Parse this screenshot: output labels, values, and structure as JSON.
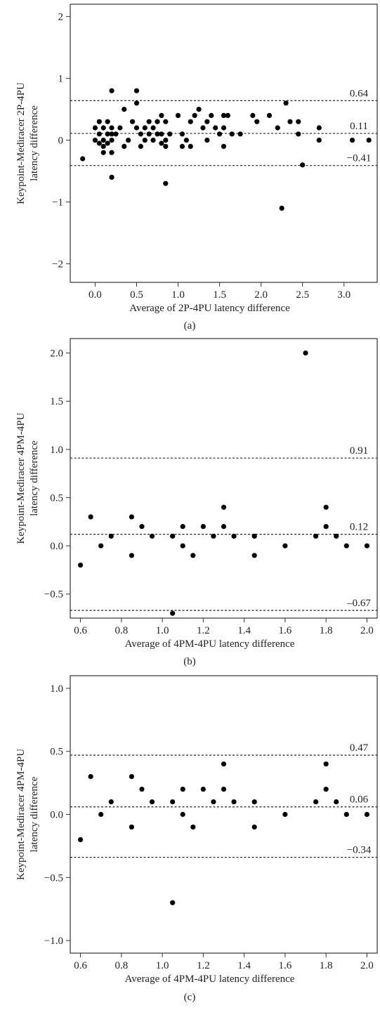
{
  "chart_data": [
    {
      "type": "scatter",
      "panel_label": "(a)",
      "xlabel": "Average of 2P-4PU latency difference",
      "ylabel_lines": [
        "Keypoint-Mediracer 2P-4PU",
        "latency difference"
      ],
      "xlim": [
        -0.3,
        3.4
      ],
      "ylim": [
        -2.3,
        2.2
      ],
      "xticks": [
        0.0,
        0.5,
        1.0,
        1.5,
        2.0,
        2.5,
        3.0
      ],
      "xtick_labels": [
        "0.0",
        "0.5",
        "1.0",
        "1.5",
        "2.0",
        "2.5",
        "3.0"
      ],
      "yticks": [
        -2,
        -1,
        0,
        1,
        2
      ],
      "ytick_labels": [
        "−2",
        "−1",
        "0",
        "1",
        "2"
      ],
      "reference_lines": [
        {
          "value": 0.64,
          "label": "0.64"
        },
        {
          "value": 0.11,
          "label": "0.11"
        },
        {
          "value": -0.41,
          "label": "−0.41"
        }
      ],
      "points": [
        [
          -0.15,
          -0.3
        ],
        [
          0.0,
          0.2
        ],
        [
          0.0,
          0.0
        ],
        [
          0.05,
          0.3
        ],
        [
          0.05,
          0.1
        ],
        [
          0.05,
          -0.05
        ],
        [
          0.1,
          0.2
        ],
        [
          0.1,
          0.0
        ],
        [
          0.1,
          -0.1
        ],
        [
          0.1,
          -0.2
        ],
        [
          0.15,
          0.3
        ],
        [
          0.15,
          0.1
        ],
        [
          0.15,
          -0.05
        ],
        [
          0.2,
          0.8
        ],
        [
          0.2,
          0.2
        ],
        [
          0.2,
          0.1
        ],
        [
          0.2,
          0.0
        ],
        [
          0.2,
          -0.2
        ],
        [
          0.2,
          -0.6
        ],
        [
          0.25,
          0.1
        ],
        [
          0.3,
          0.2
        ],
        [
          0.35,
          0.5
        ],
        [
          0.35,
          -0.1
        ],
        [
          0.4,
          0.0
        ],
        [
          0.45,
          0.3
        ],
        [
          0.5,
          0.8
        ],
        [
          0.5,
          0.6
        ],
        [
          0.5,
          0.2
        ],
        [
          0.55,
          0.1
        ],
        [
          0.55,
          -0.1
        ],
        [
          0.6,
          0.2
        ],
        [
          0.6,
          0.0
        ],
        [
          0.65,
          0.3
        ],
        [
          0.65,
          0.1
        ],
        [
          0.7,
          0.2
        ],
        [
          0.7,
          0.0
        ],
        [
          0.75,
          0.3
        ],
        [
          0.75,
          0.1
        ],
        [
          0.8,
          0.4
        ],
        [
          0.8,
          0.1
        ],
        [
          0.8,
          -0.05
        ],
        [
          0.85,
          0.3
        ],
        [
          0.85,
          0.0
        ],
        [
          0.85,
          -0.1
        ],
        [
          0.85,
          -0.7
        ],
        [
          0.9,
          0.1
        ],
        [
          1.0,
          0.4
        ],
        [
          1.05,
          0.1
        ],
        [
          1.05,
          -0.1
        ],
        [
          1.1,
          0.0
        ],
        [
          1.15,
          0.3
        ],
        [
          1.15,
          -0.1
        ],
        [
          1.2,
          0.4
        ],
        [
          1.25,
          0.5
        ],
        [
          1.3,
          0.2
        ],
        [
          1.35,
          0.3
        ],
        [
          1.35,
          0.0
        ],
        [
          1.4,
          0.4
        ],
        [
          1.45,
          0.2
        ],
        [
          1.5,
          0.1
        ],
        [
          1.55,
          0.4
        ],
        [
          1.55,
          0.2
        ],
        [
          1.55,
          -0.1
        ],
        [
          1.6,
          0.4
        ],
        [
          1.65,
          0.1
        ],
        [
          1.75,
          0.1
        ],
        [
          1.9,
          0.4
        ],
        [
          1.95,
          0.3
        ],
        [
          2.1,
          0.4
        ],
        [
          2.2,
          0.2
        ],
        [
          2.25,
          -1.1
        ],
        [
          2.3,
          0.6
        ],
        [
          2.35,
          0.3
        ],
        [
          2.45,
          0.3
        ],
        [
          2.45,
          0.1
        ],
        [
          2.5,
          -0.4
        ],
        [
          2.7,
          0.2
        ],
        [
          2.7,
          0.0
        ],
        [
          3.1,
          0.0
        ],
        [
          3.3,
          0.0
        ]
      ]
    },
    {
      "type": "scatter",
      "panel_label": "(b)",
      "xlabel": "Average of 4PM-4PU latency difference",
      "ylabel_lines": [
        "Keypoint-Mediracer 4PM-4PU",
        "latency difference"
      ],
      "xlim": [
        0.55,
        2.05
      ],
      "ylim": [
        -0.75,
        2.15
      ],
      "xticks": [
        0.6,
        0.8,
        1.0,
        1.2,
        1.4,
        1.6,
        1.8,
        2.0
      ],
      "xtick_labels": [
        "0.6",
        "0.8",
        "1.0",
        "1.2",
        "1.4",
        "1.6",
        "1.8",
        "2.0"
      ],
      "yticks": [
        -0.5,
        0.0,
        0.5,
        1.0,
        1.5,
        2.0
      ],
      "ytick_labels": [
        "−0.5",
        "0.0",
        "0.5",
        "1.0",
        "1.5",
        "2.0"
      ],
      "reference_lines": [
        {
          "value": 0.91,
          "label": "0.91"
        },
        {
          "value": 0.12,
          "label": "0.12"
        },
        {
          "value": -0.67,
          "label": "–0.67"
        }
      ],
      "points": [
        [
          0.6,
          -0.2
        ],
        [
          0.65,
          0.3
        ],
        [
          0.7,
          0.0
        ],
        [
          0.75,
          0.1
        ],
        [
          0.85,
          0.3
        ],
        [
          0.85,
          -0.1
        ],
        [
          0.9,
          0.2
        ],
        [
          0.95,
          0.1
        ],
        [
          1.05,
          0.1
        ],
        [
          1.05,
          -0.7
        ],
        [
          1.1,
          0.2
        ],
        [
          1.1,
          0.0
        ],
        [
          1.15,
          -0.1
        ],
        [
          1.2,
          0.2
        ],
        [
          1.25,
          0.1
        ],
        [
          1.3,
          0.4
        ],
        [
          1.3,
          0.2
        ],
        [
          1.35,
          0.1
        ],
        [
          1.45,
          0.1
        ],
        [
          1.45,
          -0.1
        ],
        [
          1.6,
          0.0
        ],
        [
          1.7,
          2.0
        ],
        [
          1.75,
          0.1
        ],
        [
          1.8,
          0.4
        ],
        [
          1.8,
          0.2
        ],
        [
          1.85,
          0.1
        ],
        [
          1.9,
          0.0
        ],
        [
          2.0,
          0.0
        ]
      ]
    },
    {
      "type": "scatter",
      "panel_label": "(c)",
      "xlabel": "Average of 4PM-4PU latency difference",
      "ylabel_lines": [
        "Keypoint-Mediracer 4PM-4PU",
        "latency difference"
      ],
      "xlim": [
        0.55,
        2.05
      ],
      "ylim": [
        -1.1,
        1.1
      ],
      "xticks": [
        0.6,
        0.8,
        1.0,
        1.2,
        1.4,
        1.6,
        1.8,
        2.0
      ],
      "xtick_labels": [
        "0.6",
        "0.8",
        "1.0",
        "1.2",
        "1.4",
        "1.6",
        "1.8",
        "2.0"
      ],
      "yticks": [
        -1.0,
        -0.5,
        0.0,
        0.5,
        1.0
      ],
      "ytick_labels": [
        "−1.0",
        "−0.5",
        "0.0",
        "0.5",
        "1.0"
      ],
      "reference_lines": [
        {
          "value": 0.47,
          "label": "0.47"
        },
        {
          "value": 0.06,
          "label": "0.06"
        },
        {
          "value": -0.34,
          "label": "−0.34"
        }
      ],
      "points": [
        [
          0.6,
          -0.2
        ],
        [
          0.65,
          0.3
        ],
        [
          0.7,
          0.0
        ],
        [
          0.75,
          0.1
        ],
        [
          0.85,
          0.3
        ],
        [
          0.85,
          -0.1
        ],
        [
          0.9,
          0.2
        ],
        [
          0.95,
          0.1
        ],
        [
          1.05,
          0.1
        ],
        [
          1.05,
          -0.7
        ],
        [
          1.1,
          0.2
        ],
        [
          1.1,
          0.0
        ],
        [
          1.15,
          -0.1
        ],
        [
          1.2,
          0.2
        ],
        [
          1.25,
          0.1
        ],
        [
          1.3,
          0.4
        ],
        [
          1.3,
          0.2
        ],
        [
          1.35,
          0.1
        ],
        [
          1.45,
          0.1
        ],
        [
          1.45,
          -0.1
        ],
        [
          1.6,
          0.0
        ],
        [
          1.75,
          0.1
        ],
        [
          1.8,
          0.4
        ],
        [
          1.8,
          0.2
        ],
        [
          1.85,
          0.1
        ],
        [
          1.9,
          0.0
        ],
        [
          2.0,
          0.0
        ]
      ]
    }
  ]
}
